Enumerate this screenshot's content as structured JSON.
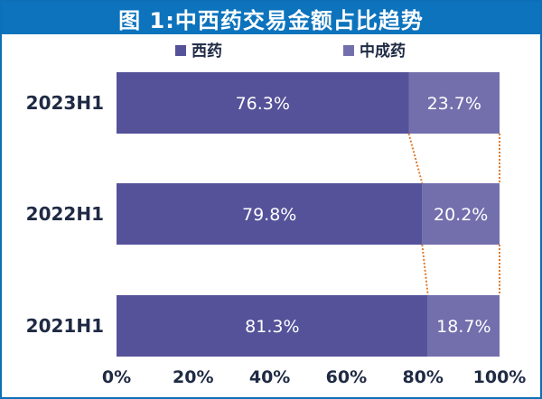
{
  "title": "图 1:中西药交易金额占比趋势",
  "colors": {
    "frame": "#0d6fb6",
    "title_bg": "#0d73bd",
    "series_a": "#55529a",
    "series_b": "#736fad",
    "connector": "#e07b2c",
    "label_dark": "#1f2a44"
  },
  "chart_data": {
    "type": "bar",
    "orientation": "horizontal",
    "stacked": true,
    "percent": true,
    "categories": [
      "2023H1",
      "2022H1",
      "2021H1"
    ],
    "series": [
      {
        "name": "西药",
        "values": [
          76.3,
          79.8,
          81.3
        ],
        "labels": [
          "76.3%",
          "79.8%",
          "81.3%"
        ]
      },
      {
        "name": "中成药",
        "values": [
          23.7,
          20.2,
          18.7
        ],
        "labels": [
          "23.7%",
          "20.2%",
          "18.7%"
        ]
      }
    ],
    "xlim": [
      0,
      100
    ],
    "xticks": [
      "0%",
      "20%",
      "40%",
      "60%",
      "80%",
      "100%"
    ],
    "legend_position": "top",
    "grid": false,
    "connector_lines": true
  }
}
